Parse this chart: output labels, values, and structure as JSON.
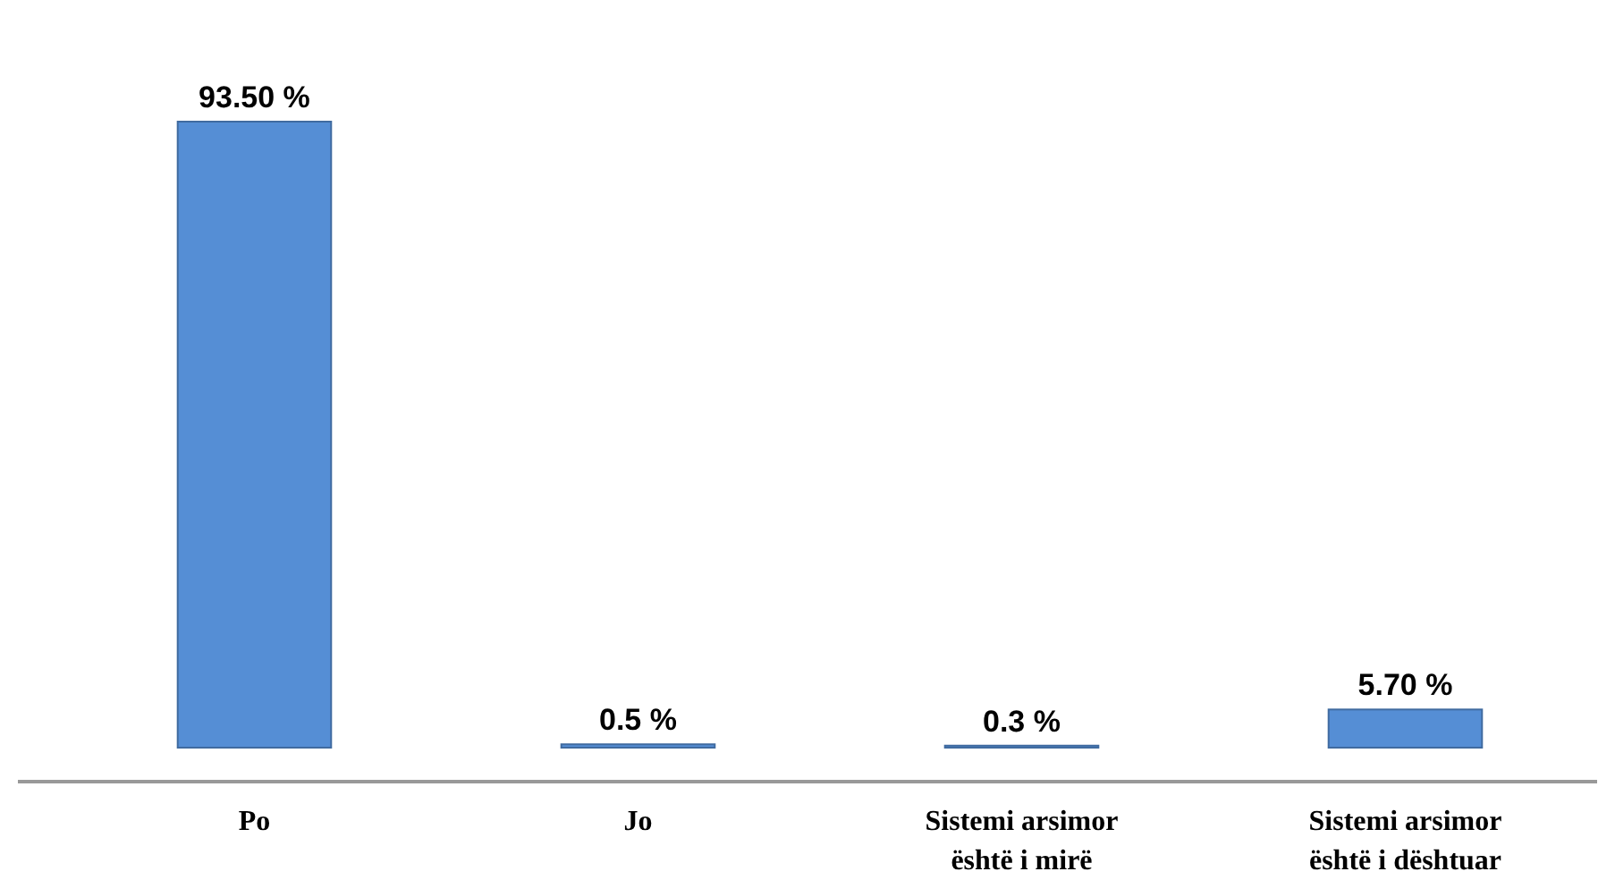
{
  "chart_data": {
    "type": "bar",
    "categories": [
      "Po",
      "Jo",
      "Sistemi arsimor është i mirë",
      "Sistemi arsimor është i dështuar"
    ],
    "values": [
      93.5,
      0.5,
      0.3,
      5.7
    ],
    "value_labels": [
      "93.50 %",
      "0.5 %",
      "0.3 %",
      "5.70 %"
    ],
    "color": "#558ed5"
  }
}
